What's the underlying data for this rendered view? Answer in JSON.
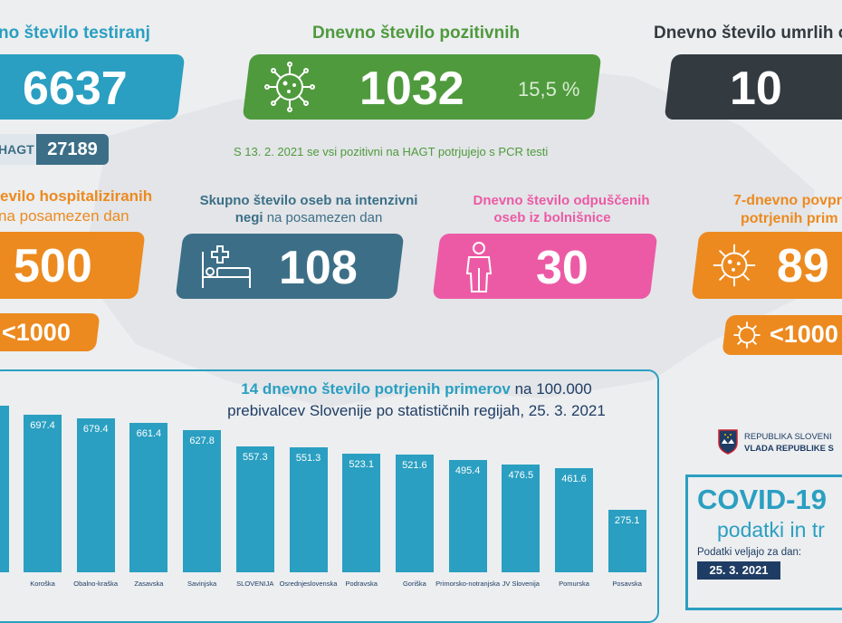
{
  "colors": {
    "teal": "#2a9fc1",
    "green": "#4f9a3d",
    "dark": "#333a40",
    "orange": "#ec8a1f",
    "slate": "#3c6f87",
    "pink": "#ec5aa5",
    "navy": "#1f3d64"
  },
  "tests": {
    "title": "no število testiranj",
    "value": "6637",
    "hagt_label": "HAGT",
    "hagt_value": "27189"
  },
  "positive": {
    "title": "Dnevno število pozitivnih",
    "value": "1032",
    "pct": "15,5 %",
    "icon": "virus-icon"
  },
  "deaths": {
    "title": "Dnevno število umrlih os",
    "value": "10"
  },
  "note": "S 13. 2. 2021 se vsi pozitivni na HAGT potrjujejo s PCR testi",
  "hosp": {
    "title1": "evilo hospitaliziranih",
    "title2": "na posamezen dan",
    "value": "500",
    "threshold": "<1000"
  },
  "icu": {
    "title1": "Skupno število oseb na intenzivni",
    "title2a": "negi",
    "title2b": " na posamezen dan",
    "value": "108",
    "icon": "hospital-bed-icon"
  },
  "discharged": {
    "title1": "Dnevno število odpuščenih",
    "title2": "oseb iz bolnišnice",
    "value": "30",
    "icon": "patient-icon"
  },
  "avg": {
    "title1": "7-dnevno povpr",
    "title2": "potrjenih prim",
    "value": "89",
    "threshold": "<1000",
    "icon": "virus-icon"
  },
  "panel": {
    "title_bold": "14 dnevno število potrjenih primerov",
    "title_rest": " na 100.000",
    "title_line2": "prebivalcev Slovenije po statističnih regijah, 25. 3. 2021"
  },
  "gov": {
    "line1": "REPUBLIKA SLOVENI",
    "line2": "VLADA REPUBLIKE S"
  },
  "covid": {
    "title": "COVID-19",
    "subtitle": "podatki in tr",
    "valid_label": "Podatki veljajo za dan:",
    "date": "25. 3. 2021"
  },
  "chart_data": {
    "type": "bar",
    "categories": [
      "Koroška",
      "Obalno-kraška",
      "Zasavska",
      "Savinjska",
      "SLOVENIJA",
      "Osrednjeslovenska",
      "Podravska",
      "Goriška",
      "Primorsko-notranjska",
      "JV Slovenija",
      "Pomurska",
      "Posavska"
    ],
    "values": [
      697.4,
      679.4,
      661.4,
      627.8,
      557.3,
      551.3,
      523.1,
      521.6,
      495.4,
      476.5,
      461.6,
      275.1
    ],
    "value_labels": [
      "697.4",
      "679.4",
      "661.4",
      "627.8",
      "557.3",
      "551.3",
      "523.1",
      "521.6",
      "495.4",
      "476.5",
      "461.6",
      "275.1"
    ],
    "partial_first_bar": true,
    "color": "#2a9fc1"
  }
}
